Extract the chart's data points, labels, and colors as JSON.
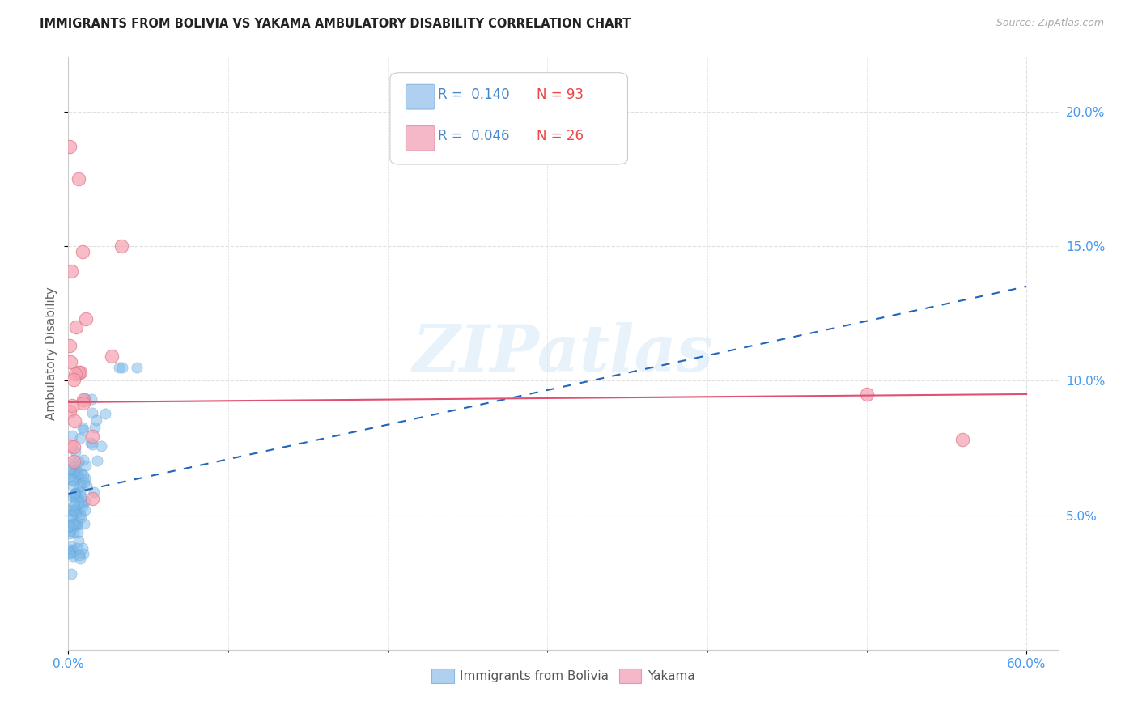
{
  "title": "IMMIGRANTS FROM BOLIVIA VS YAKAMA AMBULATORY DISABILITY CORRELATION CHART",
  "source": "Source: ZipAtlas.com",
  "ylabel": "Ambulatory Disability",
  "watermark": "ZIPatlas",
  "xlim": [
    0.0,
    0.62
  ],
  "ylim": [
    0.0,
    0.22
  ],
  "xtick_major": [
    0.0,
    0.6
  ],
  "xtick_major_labels": [
    "0.0%",
    "60.0%"
  ],
  "xtick_minor": [
    0.1,
    0.2,
    0.3,
    0.4,
    0.5
  ],
  "ytick_vals": [
    0.05,
    0.1,
    0.15,
    0.2
  ],
  "ytick_labels": [
    "5.0%",
    "10.0%",
    "15.0%",
    "20.0%"
  ],
  "bolivia_color": "#7ab8e8",
  "bolivia_edge_color": "#5a9fd4",
  "yakama_color": "#f5a0b0",
  "yakama_edge_color": "#e07888",
  "bolivia_trend_color": "#2266bb",
  "yakama_trend_color": "#e05070",
  "bolivia_R": 0.14,
  "yakama_R": 0.046,
  "bolivia_N": 93,
  "yakama_N": 26,
  "tick_color": "#4499ee",
  "grid_color": "#e0e0e0",
  "background_color": "#ffffff",
  "title_color": "#222222",
  "source_color": "#aaaaaa",
  "ylabel_color": "#666666",
  "legend_box_color1": "#b0d0f0",
  "legend_box_color2": "#f5b8c8",
  "legend_R1": "R =  0.140",
  "legend_N1": "N = 93",
  "legend_R2": "R =  0.046",
  "legend_N2": "N = 26",
  "legend_R_color": "#4488cc",
  "legend_N_color": "#ee4444"
}
